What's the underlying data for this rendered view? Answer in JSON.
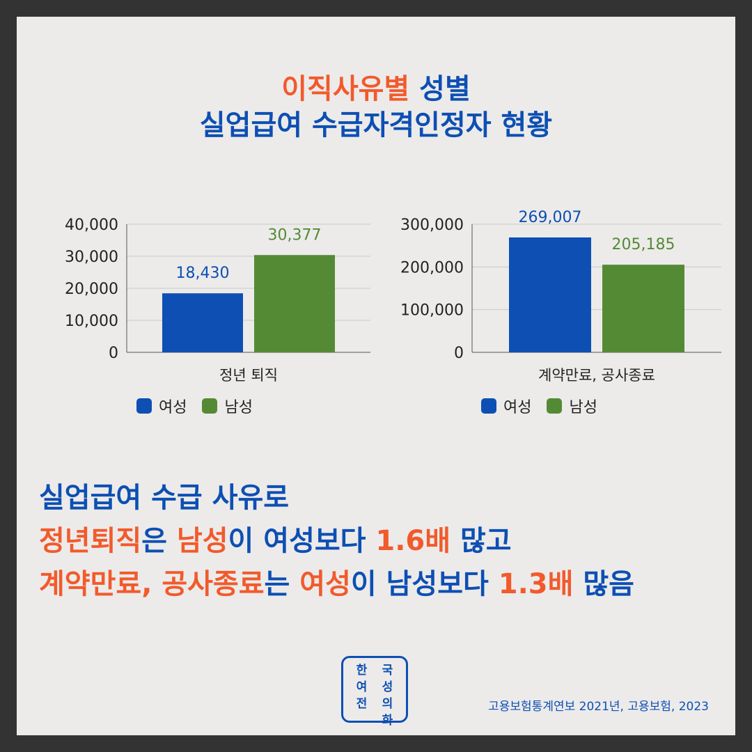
{
  "header": {
    "title_line1_highlight": "이직사유별",
    "title_line1_rest": " 성별",
    "title_line2": "실업급여 수급자격인정자 현황"
  },
  "colors": {
    "female": "#0d4fb3",
    "male": "#558a35",
    "accent": "#f25a2c",
    "female_label": "#0d4fb3",
    "male_label": "#558a35"
  },
  "chart_data": [
    {
      "type": "bar",
      "categories": [
        "정년 퇴직"
      ],
      "series": [
        {
          "name": "여성",
          "values": [
            18430
          ]
        },
        {
          "name": "남성",
          "values": [
            30377
          ]
        }
      ],
      "value_labels": [
        "18,430",
        "30,377"
      ],
      "ylim": [
        0,
        40000
      ],
      "yticks": [
        0,
        10000,
        20000,
        30000,
        40000
      ],
      "ytick_labels": [
        "0",
        "10,000",
        "20,000",
        "30,000",
        "40,000"
      ],
      "grid": true,
      "legend_position": "bottom"
    },
    {
      "type": "bar",
      "categories": [
        "계약만료, 공사종료"
      ],
      "series": [
        {
          "name": "여성",
          "values": [
            269007
          ]
        },
        {
          "name": "남성",
          "values": [
            205185
          ]
        }
      ],
      "value_labels": [
        "269,007",
        "205,185"
      ],
      "ylim": [
        0,
        300000
      ],
      "yticks": [
        0,
        100000,
        200000,
        300000
      ],
      "ytick_labels": [
        "0",
        "100,000",
        "200,000",
        "300,000"
      ],
      "grid": true,
      "legend_position": "bottom"
    }
  ],
  "legend": {
    "female": "여성",
    "male": "남성"
  },
  "summary": {
    "line1": "실업급여 수급 사유로",
    "line2": [
      {
        "t": "정년퇴직",
        "c": "o"
      },
      {
        "t": "은 ",
        "c": "b"
      },
      {
        "t": "남성",
        "c": "o"
      },
      {
        "t": "이 여성보다 ",
        "c": "b"
      },
      {
        "t": "1.6배",
        "c": "o"
      },
      {
        "t": " 많고",
        "c": "b"
      }
    ],
    "line3": [
      {
        "t": "계약만료, 공사종료",
        "c": "o"
      },
      {
        "t": "는 ",
        "c": "b"
      },
      {
        "t": "여성",
        "c": "o"
      },
      {
        "t": "이 남성보다 ",
        "c": "b"
      },
      {
        "t": "1.3배",
        "c": "o"
      },
      {
        "t": " 많음",
        "c": "b"
      }
    ]
  },
  "logo": {
    "chars": [
      "한",
      "국",
      "여",
      "성",
      "전",
      "의",
      "",
      "화"
    ]
  },
  "source": "고용보험통계연보 2021년, 고용보험, 2023"
}
